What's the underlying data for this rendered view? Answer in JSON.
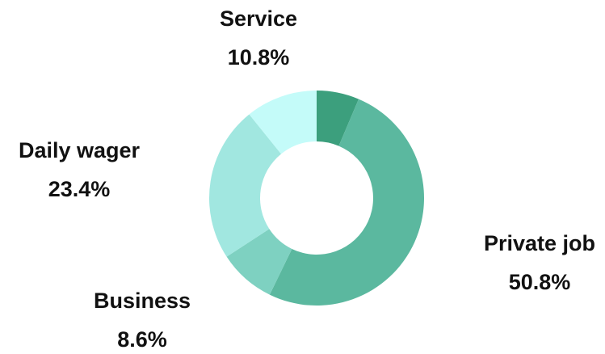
{
  "chart_data": {
    "type": "donut",
    "categories": [
      null,
      "Private job",
      "Business",
      "Daily wager",
      "Service"
    ],
    "values": [
      6.4,
      50.8,
      8.6,
      23.4,
      10.8
    ],
    "value_labels": [
      null,
      "50.8%",
      "8.6%",
      "23.4%",
      "10.8%"
    ],
    "colors": [
      "#3c9f7d",
      "#5bb89f",
      "#7ed1c1",
      "#a1e7e0",
      "#c4fbf9"
    ]
  }
}
